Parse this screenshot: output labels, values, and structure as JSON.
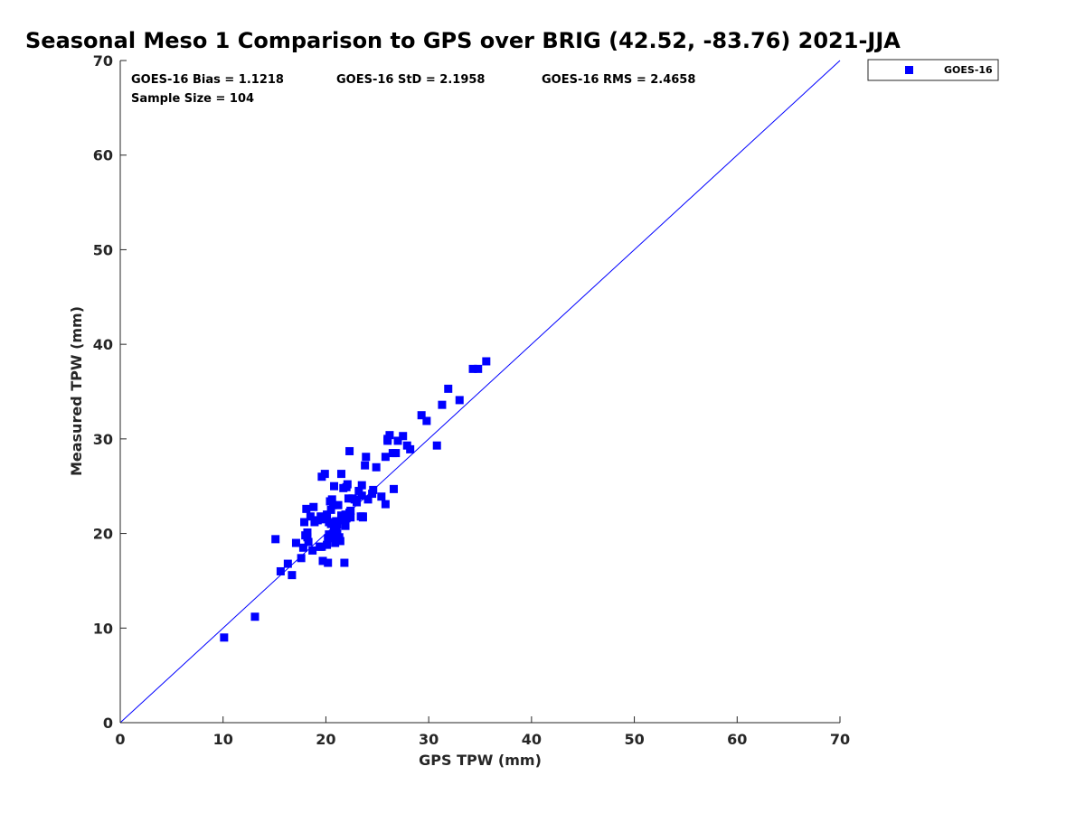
{
  "chart_data": {
    "type": "scatter",
    "title": "Seasonal Meso 1 Comparison to GPS over BRIG (42.52, -83.76) 2021-JJA",
    "xlabel": "GPS TPW (mm)",
    "ylabel": "Measured TPW (mm)",
    "xlim": [
      0,
      70
    ],
    "ylim": [
      0,
      70
    ],
    "xticks": [
      "0",
      "10",
      "20",
      "30",
      "40",
      "50",
      "60",
      "70"
    ],
    "yticks": [
      "0",
      "10",
      "20",
      "30",
      "40",
      "50",
      "60",
      "70"
    ],
    "grid": false,
    "legend_position": "outside-top-right",
    "reference_line": {
      "x": [
        0,
        70
      ],
      "y": [
        0,
        70
      ],
      "color": "#0000ff"
    },
    "stats": {
      "bias": "GOES-16 Bias = 1.1218",
      "std": "GOES-16 StD = 2.1958",
      "rms": "GOES-16 RMS = 2.4658",
      "sample_size": "Sample Size = 104"
    },
    "series": [
      {
        "name": "GOES-16",
        "color": "#0000ff",
        "marker": "square",
        "x": [
          10.1,
          13.1,
          15.1,
          15.6,
          16.3,
          16.7,
          17.1,
          17.6,
          17.8,
          17.9,
          18.1,
          18.2,
          18.3,
          18.5,
          18.7,
          18.8,
          18.9,
          19.4,
          19.5,
          19.6,
          19.7,
          19.8,
          19.9,
          20.0,
          20.1,
          20.1,
          20.2,
          20.2,
          20.3,
          20.4,
          20.5,
          20.5,
          20.6,
          20.7,
          20.8,
          20.9,
          21.0,
          21.1,
          21.2,
          21.3,
          21.4,
          21.5,
          21.6,
          21.7,
          21.8,
          21.9,
          22.0,
          22.1,
          22.2,
          22.3,
          22.4,
          22.6,
          22.8,
          23.0,
          23.2,
          23.4,
          23.5,
          23.6,
          23.8,
          23.9,
          24.1,
          24.6,
          24.9,
          25.4,
          25.8,
          26.0,
          26.2,
          26.6,
          26.8,
          27.0,
          27.5,
          27.9,
          28.2,
          29.3,
          29.8,
          30.8,
          31.3,
          31.9,
          33.0,
          34.3,
          34.8,
          35.6,
          18.0,
          19.2,
          19.5,
          21.5,
          21.9,
          19.6,
          20.3,
          22.0,
          23.5,
          22.4,
          21.0,
          20.8,
          23.6,
          25.8,
          26.0,
          21.1,
          18.2,
          20.6,
          22.3,
          23.0,
          24.5,
          26.5
        ],
        "y": [
          9.0,
          11.2,
          19.4,
          16.0,
          16.8,
          15.6,
          19.0,
          17.4,
          18.5,
          21.2,
          22.6,
          20.1,
          19.1,
          21.8,
          18.2,
          22.8,
          21.2,
          18.6,
          21.8,
          26.0,
          17.1,
          21.5,
          26.3,
          21.6,
          18.8,
          22.0,
          19.5,
          16.9,
          21.2,
          23.4,
          21.0,
          22.5,
          19.8,
          23.0,
          25.0,
          19.0,
          21.3,
          20.0,
          23.0,
          19.6,
          19.2,
          26.3,
          21.4,
          24.8,
          16.9,
          20.8,
          21.6,
          25.2,
          23.7,
          28.7,
          22.4,
          23.7,
          23.6,
          23.4,
          24.5,
          21.8,
          25.1,
          21.8,
          27.2,
          28.1,
          23.6,
          24.6,
          27.0,
          23.9,
          28.1,
          29.8,
          30.4,
          24.7,
          28.5,
          29.8,
          30.3,
          29.3,
          28.9,
          32.5,
          31.9,
          29.3,
          33.6,
          35.3,
          34.1,
          37.4,
          37.4,
          38.2,
          19.8,
          21.4,
          18.6,
          21.9,
          22.0,
          18.6,
          19.9,
          24.9,
          24.0,
          21.7,
          20.5,
          20.2,
          21.7,
          23.1,
          30.0,
          20.9,
          19.6,
          23.6,
          22.2,
          23.3,
          24.2,
          28.5
        ]
      }
    ]
  }
}
